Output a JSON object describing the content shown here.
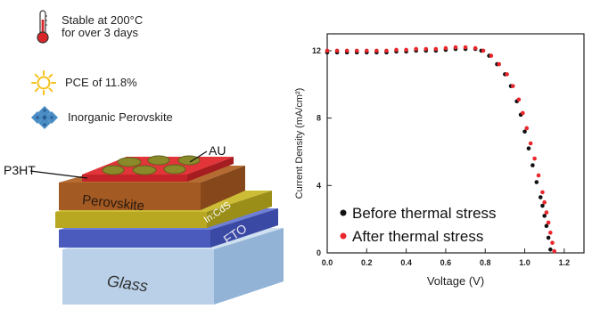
{
  "features": {
    "stability": {
      "icon": "thermometer-icon",
      "line1": "Stable at 200°C",
      "line2": "for over 3 days"
    },
    "pce": {
      "icon": "sun-icon",
      "text": "PCE of 11.8%"
    },
    "perovskite": {
      "icon": "crystal-lattice-icon",
      "text": "Inorganic Perovskite"
    }
  },
  "device": {
    "layers": {
      "glass": "Glass",
      "fto": "FTO",
      "incds": "In:CdS",
      "perovskite": "Perovskite",
      "p3ht": "P3HT",
      "au": "AU"
    },
    "colors": {
      "glass": "#a9c7e3",
      "fto": "#4a5bbd",
      "incds": "#b8a821",
      "perovskite": "#a8602a",
      "p3ht": "#e2353a",
      "au": "#8a8a2a"
    }
  },
  "chart_data": {
    "type": "scatter",
    "xlabel": "Voltage (V)",
    "ylabel": "Current Density (mA/cm²)",
    "xlim": [
      0,
      1.3
    ],
    "ylim": [
      0,
      13
    ],
    "xticks": [
      "0.0",
      "0.2",
      "0.4",
      "0.6",
      "0.8",
      "1.0",
      "1.2"
    ],
    "yticks": [
      "0",
      "4",
      "8",
      "12"
    ],
    "grid": false,
    "legend_position": "bottom-left",
    "series": [
      {
        "name": "Before thermal stress",
        "color": "#111111",
        "x": [
          0.0,
          0.05,
          0.1,
          0.15,
          0.2,
          0.25,
          0.3,
          0.35,
          0.4,
          0.45,
          0.5,
          0.55,
          0.6,
          0.65,
          0.7,
          0.75,
          0.78,
          0.82,
          0.86,
          0.9,
          0.93,
          0.96,
          0.98,
          1.0,
          1.02,
          1.04,
          1.06,
          1.08,
          1.09,
          1.1,
          1.11,
          1.12,
          1.13
        ],
        "y": [
          11.9,
          11.9,
          11.9,
          11.9,
          11.9,
          11.9,
          11.9,
          11.95,
          11.95,
          12.0,
          12.0,
          12.0,
          12.05,
          12.1,
          12.1,
          12.1,
          12.0,
          11.7,
          11.2,
          10.6,
          9.9,
          9.0,
          8.2,
          7.2,
          6.2,
          5.2,
          4.2,
          3.3,
          2.8,
          2.2,
          1.6,
          0.9,
          0.2
        ]
      },
      {
        "name": "After thermal stress",
        "color": "#e8262b",
        "x": [
          0.0,
          0.05,
          0.1,
          0.15,
          0.2,
          0.25,
          0.3,
          0.35,
          0.4,
          0.45,
          0.5,
          0.55,
          0.6,
          0.65,
          0.7,
          0.75,
          0.79,
          0.83,
          0.87,
          0.91,
          0.94,
          0.97,
          0.99,
          1.01,
          1.03,
          1.05,
          1.07,
          1.09,
          1.1,
          1.11,
          1.12,
          1.13,
          1.14,
          1.15
        ],
        "y": [
          12.0,
          12.0,
          12.0,
          12.0,
          12.0,
          12.0,
          12.0,
          12.05,
          12.05,
          12.1,
          12.1,
          12.1,
          12.15,
          12.2,
          12.2,
          12.15,
          12.0,
          11.7,
          11.2,
          10.6,
          9.9,
          9.1,
          8.3,
          7.4,
          6.5,
          5.6,
          4.6,
          3.6,
          3.0,
          2.4,
          1.8,
          1.2,
          0.6,
          0.1
        ]
      }
    ]
  }
}
